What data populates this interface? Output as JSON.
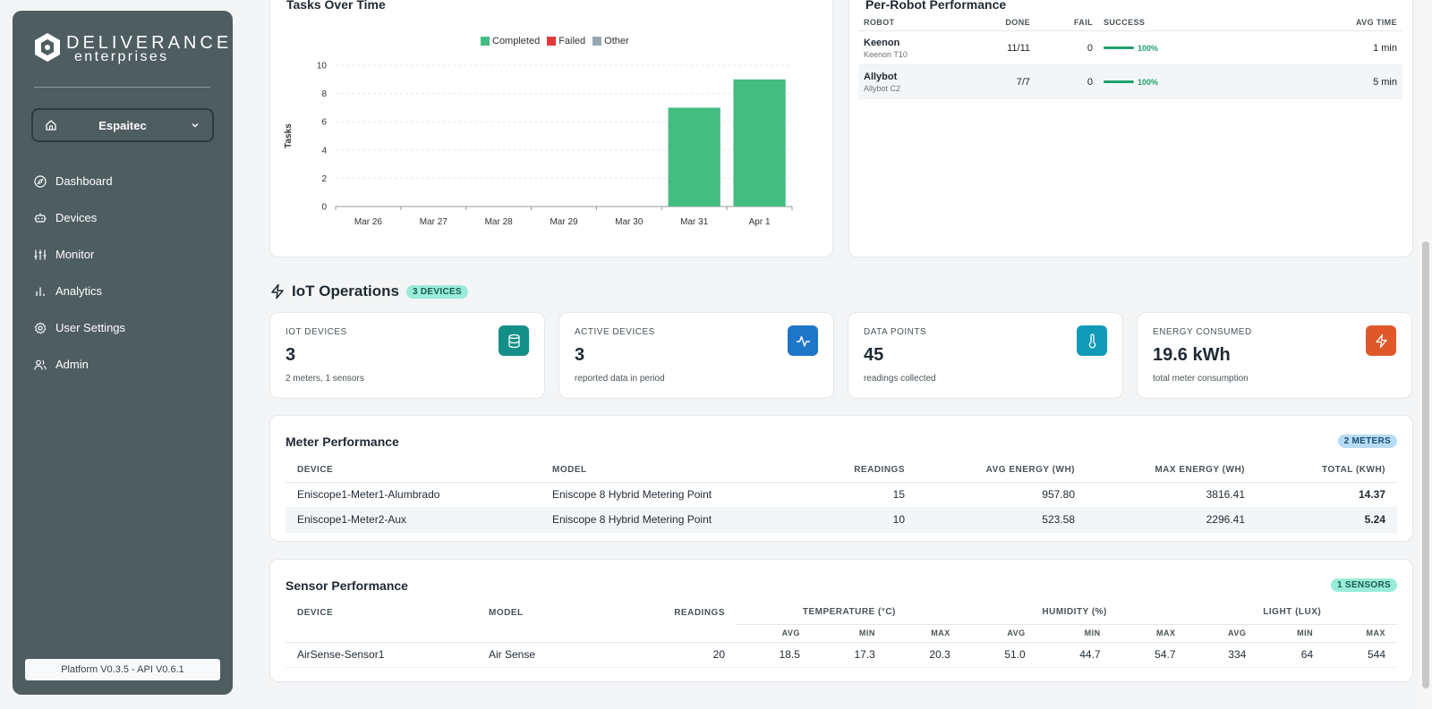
{
  "sidebar": {
    "logo_top": "DELIVERANCE",
    "logo_bottom": "enterprises",
    "site": "Espaitec",
    "nav": [
      {
        "label": "Dashboard",
        "icon": "compass-icon"
      },
      {
        "label": "Devices",
        "icon": "robot-icon"
      },
      {
        "label": "Monitor",
        "icon": "sliders-icon"
      },
      {
        "label": "Analytics",
        "icon": "bar-chart-icon"
      },
      {
        "label": "User Settings",
        "icon": "gear-icon"
      },
      {
        "label": "Admin",
        "icon": "users-icon"
      }
    ],
    "version": "Platform V0.3.5 - API V0.6.1"
  },
  "tasks_chart": {
    "title": "Tasks Over Time",
    "legend": [
      {
        "label": "Completed",
        "color": "#43bd82"
      },
      {
        "label": "Failed",
        "color": "#e5383b"
      },
      {
        "label": "Other",
        "color": "#98a6b3"
      }
    ]
  },
  "chart_data": {
    "type": "bar",
    "title": "Tasks Over Time",
    "categories": [
      "Mar 26",
      "Mar 27",
      "Mar 28",
      "Mar 29",
      "Mar 30",
      "Mar 31",
      "Apr 1"
    ],
    "series": [
      {
        "name": "Completed",
        "values": [
          0,
          0,
          0,
          0,
          0,
          7,
          9
        ]
      },
      {
        "name": "Failed",
        "values": [
          0,
          0,
          0,
          0,
          0,
          0,
          0
        ]
      },
      {
        "name": "Other",
        "values": [
          0,
          0,
          0,
          0,
          0,
          0,
          0
        ]
      }
    ],
    "xlabel": "",
    "ylabel": "Tasks",
    "ylim": [
      0,
      10
    ],
    "yticks": [
      0,
      2,
      4,
      6,
      8,
      10
    ],
    "grid": true,
    "legend_position": "top"
  },
  "robot_perf": {
    "title": "Per-Robot Performance",
    "headers": {
      "robot": "ROBOT",
      "done": "DONE",
      "fail": "FAIL",
      "success": "SUCCESS",
      "avg_time": "AVG TIME"
    },
    "rows": [
      {
        "name": "Keenon",
        "model": "Keenon T10",
        "done": "11/11",
        "fail": "0",
        "success": "100%",
        "avg_time": "1 min"
      },
      {
        "name": "Allybot",
        "model": "Allybot C2",
        "done": "7/7",
        "fail": "0",
        "success": "100%",
        "avg_time": "5 min"
      }
    ]
  },
  "iot": {
    "title": "IoT Operations",
    "badge": "3 DEVICES",
    "stats": [
      {
        "label": "IOT DEVICES",
        "value": "3",
        "sub": "2 meters, 1 sensors",
        "icon": "database-icon",
        "color": "#138f87"
      },
      {
        "label": "ACTIVE DEVICES",
        "value": "3",
        "sub": "reported data in period",
        "icon": "activity-icon",
        "color": "#1e76c8"
      },
      {
        "label": "DATA POINTS",
        "value": "45",
        "sub": "readings collected",
        "icon": "thermometer-icon",
        "color": "#0f9ab5"
      },
      {
        "label": "ENERGY CONSUMED",
        "value": "19.6 kWh",
        "sub": "total meter consumption",
        "icon": "zap-icon",
        "color": "#e0582a"
      }
    ]
  },
  "meters": {
    "title": "Meter Performance",
    "badge": "2 METERS",
    "headers": [
      "DEVICE",
      "MODEL",
      "READINGS",
      "AVG ENERGY (WH)",
      "MAX ENERGY (WH)",
      "TOTAL (KWH)"
    ],
    "rows": [
      [
        "Eniscope1-Meter1-Alumbrado",
        "Eniscope 8 Hybrid Metering Point",
        "15",
        "957.80",
        "3816.41",
        "14.37"
      ],
      [
        "Eniscope1-Meter2-Aux",
        "Eniscope 8 Hybrid Metering Point",
        "10",
        "523.58",
        "2296.41",
        "5.24"
      ]
    ]
  },
  "sensors": {
    "title": "Sensor Performance",
    "badge": "1 SENSORS",
    "headers": [
      "DEVICE",
      "MODEL",
      "READINGS",
      "TEMPERATURE (°C)",
      "HUMIDITY (%)",
      "LIGHT (LUX)"
    ],
    "sub_headers": [
      "AVG",
      "MIN",
      "MAX",
      "AVG",
      "MIN",
      "MAX",
      "AVG",
      "MIN",
      "MAX"
    ],
    "rows": [
      [
        "AirSense-Sensor1",
        "Air Sense",
        "20",
        "18.5",
        "17.3",
        "20.3",
        "51.0",
        "44.7",
        "54.7",
        "334",
        "64",
        "544"
      ]
    ]
  }
}
